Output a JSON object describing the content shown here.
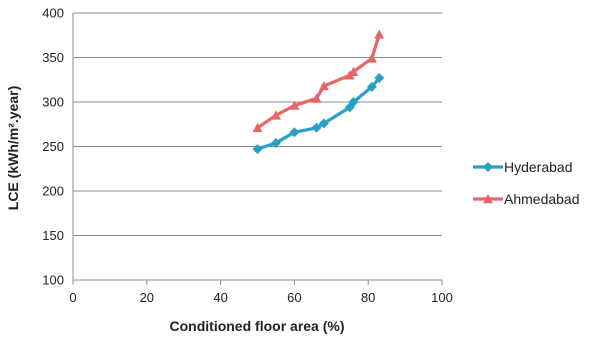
{
  "chart_data": {
    "type": "line",
    "xlabel": "Conditioned floor area (%)",
    "ylabel": "LCE (kWh/m².year)",
    "xlim": [
      0,
      100
    ],
    "ylim": [
      100,
      400
    ],
    "x_ticks": [
      "0",
      "20",
      "40",
      "60",
      "80",
      "100"
    ],
    "y_ticks": [
      "100",
      "150",
      "200",
      "250",
      "300",
      "350",
      "400"
    ],
    "grid": "horizontal",
    "legend_position": "right",
    "series": [
      {
        "name": "Hyderabad",
        "color": "#2a9fc7",
        "marker": "diamond",
        "x": [
          50,
          55,
          60,
          66,
          68,
          75,
          76,
          81,
          83
        ],
        "y": [
          247,
          254,
          266,
          271,
          276,
          294,
          300,
          317,
          327
        ]
      },
      {
        "name": "Ahmedabad",
        "color": "#ea6566",
        "marker": "triangle",
        "x": [
          50,
          55,
          60,
          66,
          68,
          75,
          76,
          81,
          83
        ],
        "y": [
          271,
          285,
          296,
          304,
          318,
          330,
          334,
          349,
          376
        ]
      }
    ]
  }
}
